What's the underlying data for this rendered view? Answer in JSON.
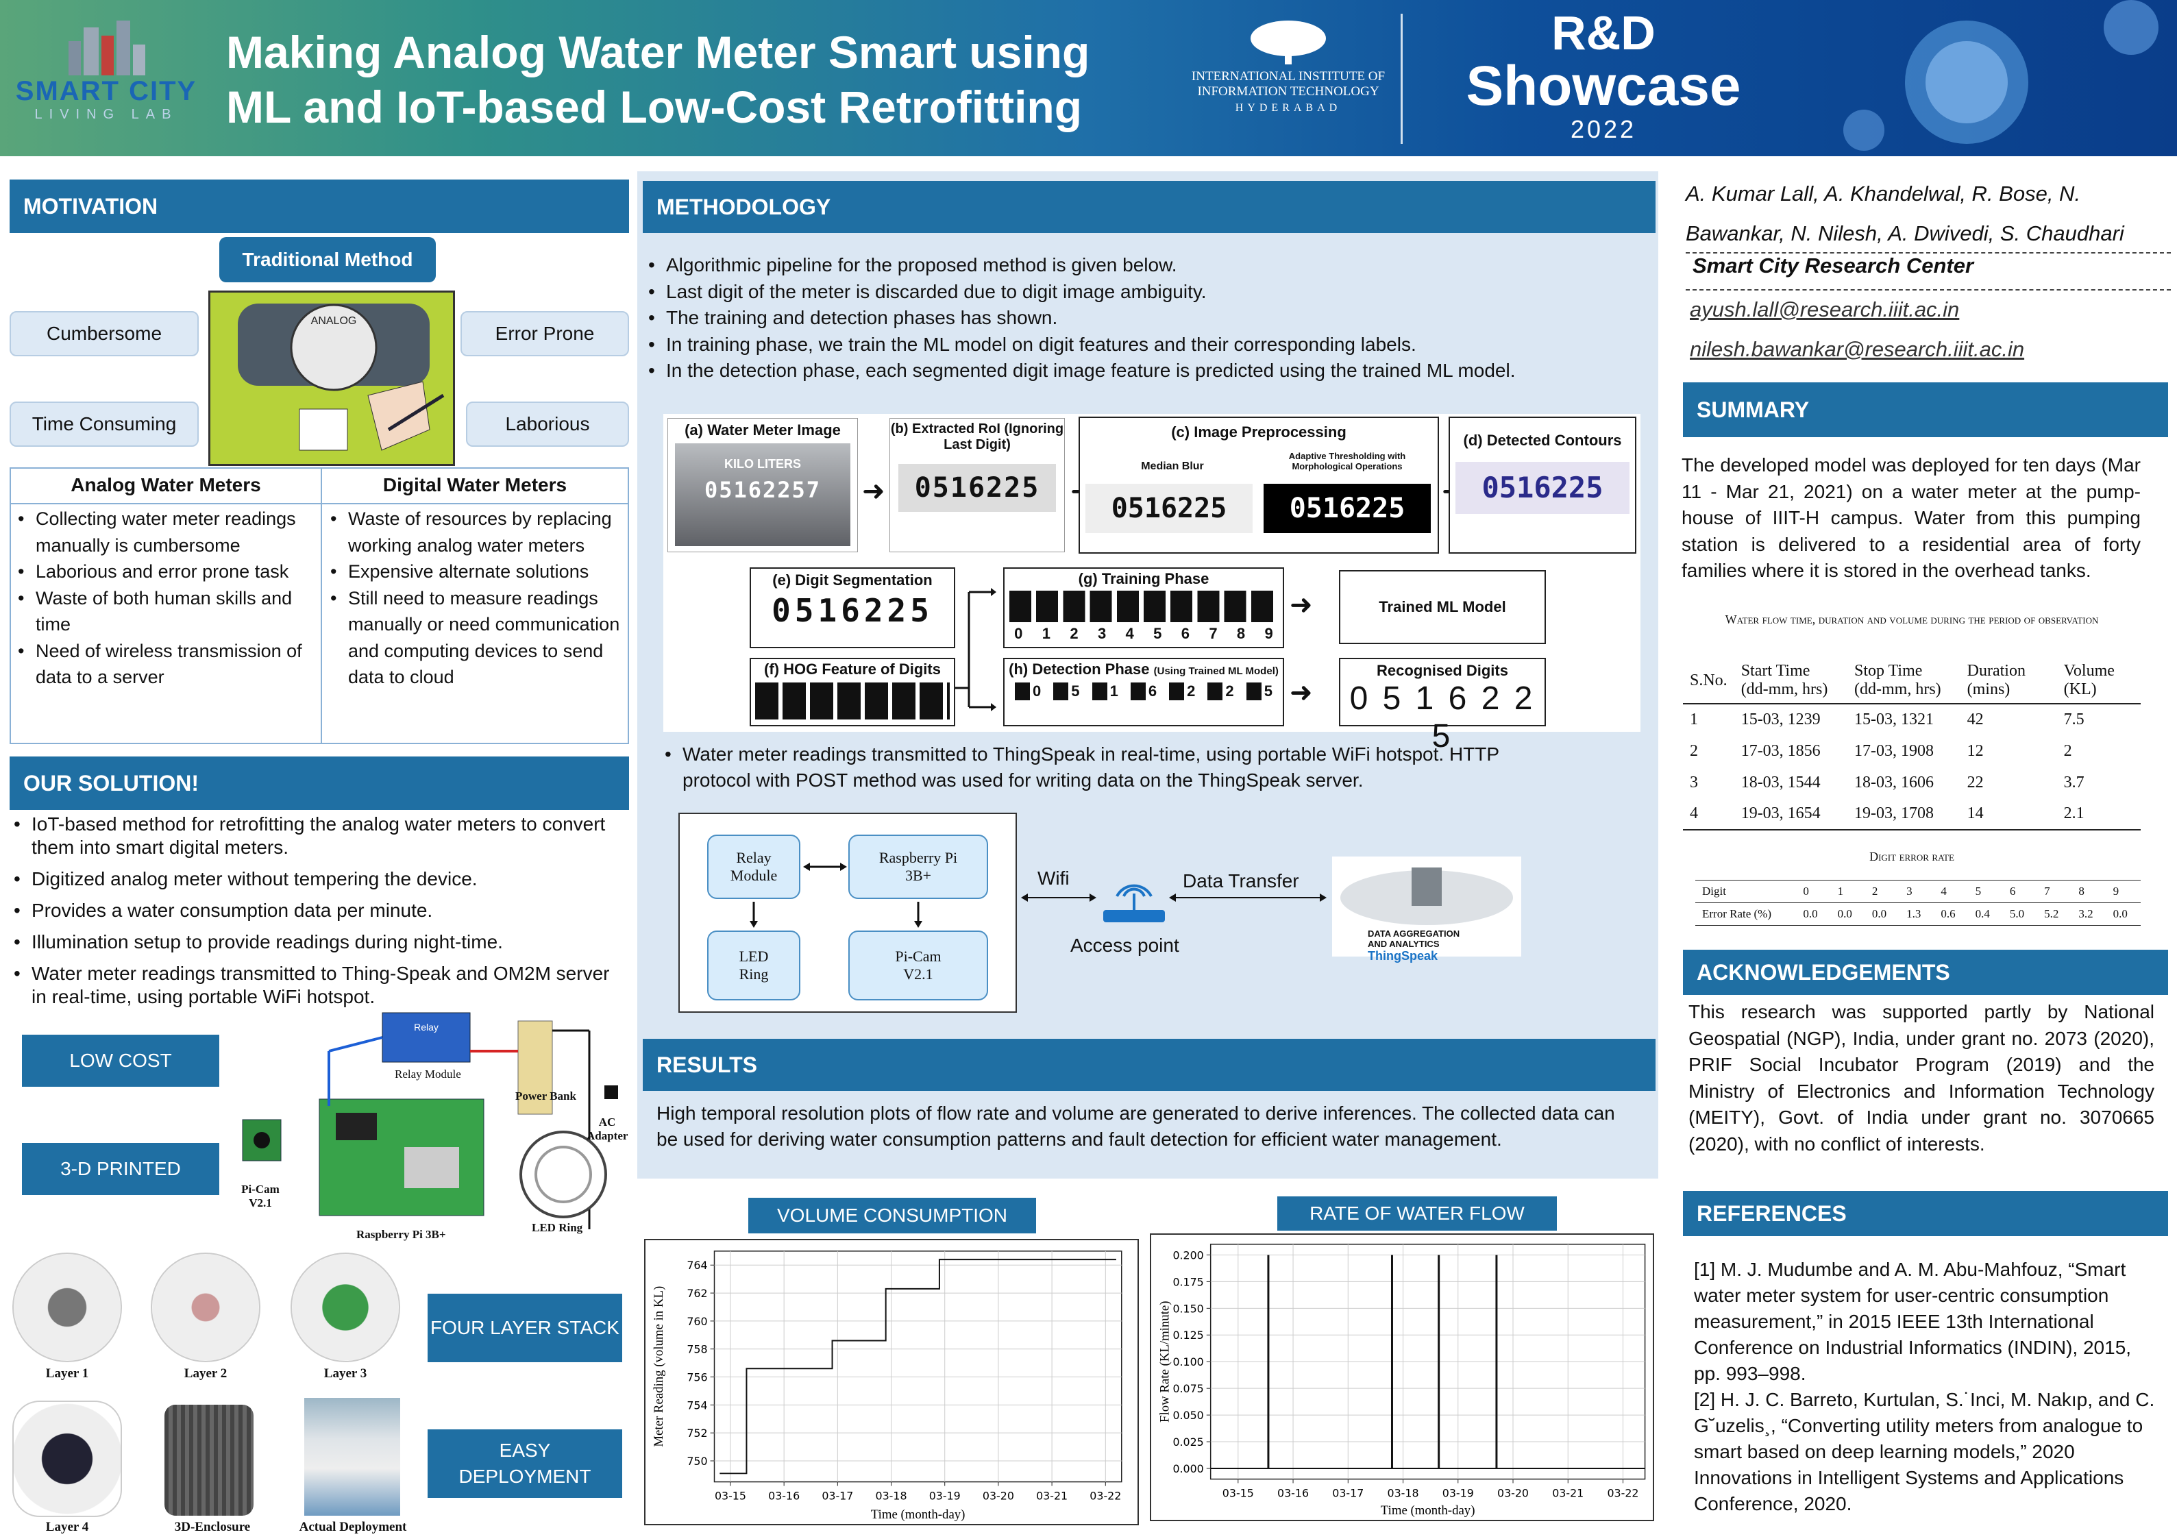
{
  "header": {
    "logo_left_line1": "SMART CITY",
    "logo_left_line2": "LIVING LAB",
    "title_line1": "Making Analog Water Meter Smart using",
    "title_line2": "ML and IoT-based Low-Cost Retrofitting",
    "iiit_line1": "INTERNATIONAL INSTITUTE OF",
    "iiit_line2": "INFORMATION TECHNOLOGY",
    "iiit_line3": "HYDERABAD",
    "showcase_rd": "R&D",
    "showcase_word": "Showcase",
    "showcase_year": "2022"
  },
  "motivation": {
    "heading": "MOTIVATION",
    "traditional": "Traditional Method",
    "tags": [
      "Cumbersome",
      "Error Prone",
      "Time Consuming",
      "Laborious"
    ],
    "meter_label": "ANALOG",
    "table_head_left": "Analog Water Meters",
    "table_head_right": "Digital Water Meters",
    "left_items": [
      "Collecting water meter readings manually is cumbersome",
      "Laborious and error prone task",
      "Waste of both human skills and time",
      "Need of wireless transmission of data to a server"
    ],
    "right_items": [
      "Waste of resources by replacing working analog water meters",
      "Expensive alternate solutions",
      "Still need to measure readings manually or need communication and computing devices to send data to cloud"
    ]
  },
  "solution": {
    "heading": "OUR SOLUTION!",
    "items": [
      "IoT-based method for retrofitting the analog water meters to convert them into smart digital meters.",
      "Digitized analog meter without tempering the device.",
      "Provides a water consumption data per minute.",
      "Illumination setup to provide readings during night-time.",
      "Water meter readings transmitted to Thing-Speak and OM2M server in real-time, using portable WiFi hotspot."
    ],
    "badges": [
      "LOW COST",
      "3-D PRINTED",
      "FOUR LAYER STACK",
      "EASY DEPLOYMENT"
    ],
    "hw_labels": {
      "relay": "Relay Module",
      "power": "Power Bank",
      "ac": "AC Adapter",
      "picam": "Pi-Cam V2.1",
      "rpi": "Raspberry Pi 3B+",
      "led": "LED Ring",
      "relay_chip": "Relay"
    },
    "layers": [
      "Layer 1",
      "Layer 2",
      "Layer 3",
      "Layer 4",
      "3D-Enclosure",
      "Actual Deployment"
    ]
  },
  "methodology": {
    "heading": "METHODOLOGY",
    "bullets": [
      "Algorithmic pipeline for the proposed method is given below.",
      "Last digit of the meter is discarded due to digit image ambiguity.",
      "The training and detection phases has shown.",
      "In training phase, we train the ML model on digit features and their corresponding labels.",
      "In the detection phase, each segmented digit image feature is predicted using the trained ML model."
    ],
    "pipeline": {
      "a": "(a) Water Meter Image",
      "a_text1": "KILO LITERS",
      "a_text2": "05162257",
      "b": "(b) Extracted RoI (Ignoring Last Digit)",
      "c": "(c) Image Preprocessing",
      "c_sub1": "Median Blur",
      "c_sub2": "Adaptive Thresholding with Morphological Operations",
      "d": "(d) Detected Contours",
      "e": "(e) Digit Segmentation",
      "f": "(f) HOG Feature of Digits",
      "g": "(g) Training Phase",
      "h": "(h) Detection Phase",
      "h_sub": "(Using Trained ML Model)",
      "trained": "Trained ML Model",
      "recognised": "Recognised Digits",
      "recognised_value": "0 5 1 6 2 2 5",
      "reading": "0516225",
      "reading_last": "5",
      "train_labels": [
        "0",
        "1",
        "2",
        "3",
        "4",
        "5",
        "6",
        "7",
        "8",
        "9"
      ],
      "detect_labels": [
        "0",
        "5",
        "1",
        "6",
        "2",
        "2",
        "5"
      ]
    },
    "thingspeak_bullet": "Water meter readings transmitted to ThingSpeak in real-time, using portable WiFi hotspot. HTTP protocol with POST method was used for writing data on the ThingSpeak server.",
    "flow": {
      "relay": "Relay Module",
      "rpi": "Raspberry Pi 3B+",
      "led": "LED Ring",
      "picam": "Pi-Cam V2.1",
      "wifi": "Wifi",
      "transfer": "Data Transfer",
      "ap": "Access point",
      "cloud1": "DATA AGGREGATION AND ANALYTICS",
      "cloud2": "ThingSpeak"
    }
  },
  "results": {
    "heading": "RESULTS",
    "text": "High temporal resolution plots of flow rate and volume are generated to derive inferences. The collected data can be used for deriving water consumption patterns and fault detection for efficient water management.",
    "vol_title": "VOLUME CONSUMPTION",
    "rate_title": "RATE OF WATER FLOW"
  },
  "chart_data": [
    {
      "type": "line",
      "title": "VOLUME CONSUMPTION",
      "xlabel": "Time (month-day)",
      "ylabel": "Meter Reading (volume in KL)",
      "x_ticks": [
        "03-15",
        "03-16",
        "03-17",
        "03-18",
        "03-19",
        "03-20",
        "03-21",
        "03-22"
      ],
      "y_ticks": [
        750,
        752,
        754,
        756,
        758,
        760,
        762,
        764
      ],
      "ylim": [
        748.5,
        765
      ],
      "xlim": [
        14.7,
        22.3
      ],
      "series": [
        {
          "x": [
            14.8,
            15.3,
            15.3,
            16.9,
            16.9,
            17.9,
            17.9,
            18.9,
            18.9,
            19.8,
            19.8,
            22.2
          ],
          "y": [
            749.1,
            749.1,
            756.6,
            756.6,
            758.6,
            758.6,
            762.3,
            762.3,
            764.4,
            764.4,
            764.4,
            764.4
          ]
        }
      ],
      "grid": true
    },
    {
      "type": "line",
      "title": "RATE OF WATER FLOW",
      "xlabel": "Time (month-day)",
      "ylabel": "Flow Rate (KL/minute)",
      "x_ticks": [
        "03-15",
        "03-16",
        "03-17",
        "03-18",
        "03-19",
        "03-20",
        "03-21",
        "03-22"
      ],
      "y_ticks": [
        "0.000",
        "0.025",
        "0.050",
        "0.075",
        "0.100",
        "0.125",
        "0.150",
        "0.175",
        "0.200"
      ],
      "ylim": [
        -0.01,
        0.21
      ],
      "xlim": [
        14.5,
        22.4
      ],
      "spikes": [
        {
          "x": 15.55,
          "y": 0.2
        },
        {
          "x": 17.8,
          "y": 0.2
        },
        {
          "x": 18.65,
          "y": 0.2
        },
        {
          "x": 19.7,
          "y": 0.2
        }
      ],
      "grid": true
    }
  ],
  "authors": {
    "names_line1": "A. Kumar Lall, A. Khandelwal, R. Bose, N.",
    "names_line2": "Bawankar, N. Nilesh, A. Dwivedi, S. Chaudhari",
    "center": "Smart City Research Center",
    "email1": "ayush.lall@research.iiit.ac.in",
    "email2": "nilesh.bawankar@research.iiit.ac.in"
  },
  "summary": {
    "heading": "SUMMARY",
    "text": "The developed model was deployed for ten days (Mar 11 - Mar 21, 2021) on a water meter at the pump-house of IIIT-H campus. Water from this pumping station is delivered to a residential area of forty families where it is stored in the overhead tanks.",
    "table_caption": "Water flow time, duration and volume during the period of observation",
    "table_head": [
      "S.No.",
      "Start Time (dd-mm, hrs)",
      "Stop Time (dd-mm, hrs)",
      "Duration (mins)",
      "Volume (KL)"
    ],
    "rows": [
      [
        "1",
        "15-03, 1239",
        "15-03, 1321",
        "42",
        "7.5"
      ],
      [
        "2",
        "17-03, 1856",
        "17-03, 1908",
        "12",
        "2"
      ],
      [
        "3",
        "18-03, 1544",
        "18-03, 1606",
        "22",
        "3.7"
      ],
      [
        "4",
        "19-03, 1654",
        "19-03, 1708",
        "14",
        "2.1"
      ]
    ],
    "digit_caption": "Digit error rate",
    "digit_head": [
      "Digit",
      "0",
      "1",
      "2",
      "3",
      "4",
      "5",
      "6",
      "7",
      "8",
      "9"
    ],
    "digit_row": [
      "Error Rate (%)",
      "0.0",
      "0.0",
      "0.0",
      "1.3",
      "0.6",
      "0.4",
      "5.0",
      "5.2",
      "3.2",
      "0.0"
    ]
  },
  "ack": {
    "heading": "ACKNOWLEDGEMENTS",
    "text": "This research was supported partly by National Geospatial (NGP), India, under grant no. 2073 (2020), PRIF Social Incubator Program (2019) and the Ministry of Electronics and Information Technology (MEITY), Govt. of India under grant no. 3070665 (2020), with no conflict of interests."
  },
  "refs": {
    "heading": "REFERENCES",
    "items": [
      "[1] M. J. Mudumbe and A. M. Abu-Mahfouz, “Smart water meter system for user-centric consumption measurement,” in 2015 IEEE 13th International Conference on Industrial Informatics (INDIN), 2015, pp. 993–998.",
      "[2] H. J. C. Barreto, Kurtulan, S.˙Inci, M. Nakıp, and C. G˘uzelis¸, “Converting utility meters from analogue to smart based on deep learning models,” 2020 Innovations in Intelligent Systems and Applications Conference, 2020."
    ]
  },
  "colors": {
    "header_blue": "#1f6fa3",
    "panel_blue": "#dbe7f3",
    "flow_fill": "#d8ecfb"
  }
}
